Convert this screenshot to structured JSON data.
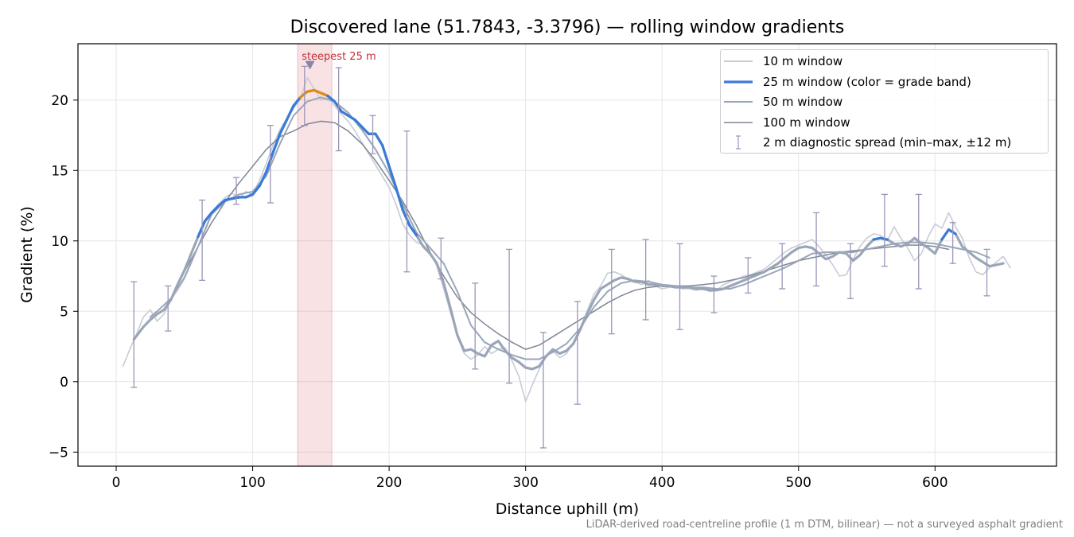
{
  "chart_data": {
    "type": "line",
    "title": "Discovered lane (51.7843, -3.3796) — rolling window gradients",
    "xlabel": "Distance uphill (m)",
    "ylabel": "Gradient (%)",
    "xlim": [
      -28,
      689
    ],
    "ylim": [
      -6,
      24
    ],
    "xticks": [
      0,
      100,
      200,
      300,
      400,
      500,
      600
    ],
    "yticks": [
      -5,
      0,
      5,
      10,
      15,
      20
    ],
    "grid": true,
    "legend_position": "top-right",
    "footnote": "LiDAR-derived road-centreline profile (1 m DTM, bilinear) — not a surveyed asphalt gradient",
    "highlight": {
      "x_start": 133,
      "x_end": 158,
      "label": "steepest 25 m",
      "marker_x": 142,
      "marker_y": 22.5
    },
    "series": [
      {
        "name": "10 m window",
        "color": "#c8ccd6",
        "x": [
          5,
          10,
          15,
          20,
          25,
          30,
          35,
          40,
          45,
          50,
          55,
          60,
          65,
          70,
          75,
          80,
          85,
          90,
          95,
          100,
          105,
          110,
          115,
          120,
          125,
          130,
          135,
          140,
          145,
          150,
          155,
          160,
          165,
          170,
          175,
          180,
          185,
          190,
          195,
          200,
          205,
          210,
          215,
          220,
          225,
          230,
          235,
          240,
          245,
          250,
          255,
          260,
          265,
          270,
          275,
          280,
          285,
          290,
          295,
          300,
          305,
          310,
          315,
          320,
          325,
          330,
          335,
          340,
          345,
          350,
          355,
          360,
          365,
          370,
          375,
          380,
          385,
          390,
          395,
          400,
          405,
          410,
          415,
          420,
          425,
          430,
          435,
          440,
          445,
          450,
          455,
          460,
          465,
          470,
          475,
          480,
          485,
          490,
          495,
          500,
          505,
          510,
          515,
          520,
          525,
          530,
          535,
          540,
          545,
          550,
          555,
          560,
          565,
          570,
          575,
          580,
          585,
          590,
          595,
          600,
          605,
          610,
          615,
          620,
          625,
          630,
          635,
          640,
          645,
          650,
          655
        ],
        "y": [
          1.1,
          2.3,
          3.4,
          4.6,
          5.1,
          4.3,
          4.8,
          5.8,
          6.5,
          7.3,
          8.4,
          9.6,
          10.8,
          12.0,
          12.6,
          13.1,
          13.4,
          13.0,
          13.5,
          13.3,
          14.3,
          15.5,
          16.8,
          17.9,
          18.7,
          19.4,
          20.1,
          21.6,
          20.8,
          20.0,
          20.2,
          19.6,
          19.0,
          18.5,
          17.8,
          17.0,
          16.2,
          15.4,
          14.6,
          13.8,
          12.6,
          11.2,
          10.4,
          9.9,
          9.7,
          9.2,
          8.2,
          6.6,
          4.9,
          3.2,
          2.0,
          1.6,
          1.9,
          2.5,
          2.0,
          2.3,
          2.4,
          1.5,
          0.4,
          -1.4,
          -0.2,
          0.9,
          1.8,
          2.2,
          1.7,
          2.0,
          2.8,
          3.8,
          5.0,
          6.2,
          6.8,
          7.7,
          7.8,
          7.6,
          7.3,
          7.1,
          6.9,
          7.2,
          6.8,
          6.6,
          6.7,
          6.8,
          6.6,
          6.6,
          6.5,
          6.6,
          6.4,
          6.5,
          6.9,
          7.1,
          7.3,
          7.5,
          7.6,
          7.8,
          8.0,
          8.4,
          8.8,
          9.2,
          9.5,
          9.7,
          9.9,
          10.1,
          9.6,
          9.0,
          8.3,
          7.5,
          7.6,
          8.7,
          9.6,
          10.2,
          10.5,
          10.4,
          10.0,
          11.0,
          10.2,
          9.5,
          8.6,
          9.1,
          10.3,
          11.2,
          10.9,
          12.0,
          11.0,
          10.2,
          8.8,
          7.8,
          7.6,
          8.1,
          8.5,
          8.9,
          8.1
        ]
      },
      {
        "name": "25 m window (color = grade band)",
        "color": "#3b7bd8",
        "x": [
          13,
          20,
          25,
          30,
          35,
          40,
          45,
          50,
          55,
          60,
          65,
          70,
          75,
          80,
          85,
          90,
          95,
          100,
          105,
          110,
          115,
          120,
          125,
          130,
          135,
          140,
          145,
          150,
          155,
          160,
          165,
          170,
          175,
          180,
          185,
          190,
          195,
          200,
          205,
          210,
          215,
          220,
          225,
          230,
          235,
          240,
          245,
          250,
          255,
          260,
          265,
          270,
          275,
          280,
          285,
          290,
          295,
          300,
          305,
          310,
          315,
          320,
          325,
          330,
          335,
          340,
          345,
          350,
          355,
          360,
          365,
          370,
          375,
          380,
          385,
          390,
          395,
          400,
          405,
          410,
          415,
          420,
          425,
          430,
          435,
          440,
          445,
          450,
          455,
          460,
          465,
          470,
          475,
          480,
          485,
          490,
          495,
          500,
          505,
          510,
          515,
          520,
          525,
          530,
          535,
          540,
          545,
          550,
          555,
          560,
          565,
          570,
          575,
          580,
          585,
          590,
          595,
          600,
          605,
          610,
          615,
          620,
          625,
          630,
          635,
          640,
          645,
          650
        ],
        "y": [
          3.0,
          3.9,
          4.4,
          4.8,
          5.1,
          5.8,
          6.9,
          7.9,
          9.1,
          10.3,
          11.4,
          12.0,
          12.5,
          12.9,
          13.0,
          13.1,
          13.1,
          13.3,
          13.9,
          14.9,
          16.3,
          17.6,
          18.6,
          19.6,
          20.2,
          20.6,
          20.7,
          20.5,
          20.3,
          19.9,
          19.2,
          18.9,
          18.6,
          18.1,
          17.6,
          17.6,
          16.8,
          15.3,
          13.8,
          12.2,
          11.1,
          10.4,
          9.6,
          9.1,
          8.4,
          7.0,
          5.2,
          3.3,
          2.2,
          2.3,
          2.0,
          1.8,
          2.6,
          2.9,
          2.2,
          1.7,
          1.4,
          1.0,
          0.9,
          1.1,
          1.8,
          2.3,
          2.0,
          2.2,
          2.7,
          3.7,
          4.8,
          5.8,
          6.6,
          6.9,
          7.2,
          7.4,
          7.3,
          7.1,
          7.1,
          6.9,
          6.9,
          6.8,
          6.8,
          6.7,
          6.7,
          6.7,
          6.6,
          6.6,
          6.5,
          6.5,
          6.6,
          6.8,
          7.0,
          7.2,
          7.4,
          7.6,
          7.8,
          8.1,
          8.4,
          8.8,
          9.2,
          9.5,
          9.6,
          9.5,
          9.1,
          8.7,
          8.9,
          9.2,
          9.1,
          8.6,
          9.0,
          9.6,
          10.1,
          10.2,
          10.1,
          9.8,
          9.6,
          9.8,
          10.2,
          9.8,
          9.5,
          9.1,
          10.1,
          10.8,
          10.5,
          9.6,
          9.2,
          8.8,
          8.5,
          8.2,
          8.3,
          8.4
        ]
      },
      {
        "name": "50 m window",
        "color": "#9aa6b8",
        "x": [
          25,
          30,
          40,
          50,
          60,
          70,
          80,
          90,
          100,
          110,
          120,
          130,
          140,
          150,
          160,
          170,
          180,
          190,
          200,
          210,
          220,
          230,
          240,
          250,
          260,
          270,
          280,
          290,
          300,
          310,
          320,
          330,
          340,
          350,
          360,
          370,
          380,
          390,
          400,
          410,
          420,
          430,
          440,
          450,
          460,
          470,
          480,
          490,
          500,
          510,
          520,
          530,
          540,
          550,
          560,
          570,
          580,
          590,
          600,
          610,
          620,
          630,
          640
        ],
        "y": [
          4.6,
          5.0,
          5.9,
          7.4,
          9.6,
          11.9,
          12.8,
          13.3,
          13.5,
          14.6,
          16.9,
          18.9,
          19.9,
          20.2,
          19.9,
          19.1,
          17.9,
          16.5,
          14.8,
          12.6,
          10.6,
          9.5,
          8.4,
          6.4,
          4.0,
          2.8,
          2.3,
          1.9,
          1.6,
          1.6,
          2.1,
          2.7,
          3.8,
          5.3,
          6.4,
          7.0,
          7.2,
          7.1,
          6.9,
          6.8,
          6.7,
          6.7,
          6.6,
          6.6,
          6.9,
          7.3,
          7.7,
          8.1,
          8.6,
          9.1,
          9.2,
          9.2,
          9.2,
          9.4,
          9.6,
          9.8,
          9.9,
          9.9,
          9.8,
          9.6,
          9.4,
          9.2,
          8.8
        ]
      },
      {
        "name": "100 m window",
        "color": "#7e8696",
        "x": [
          50,
          60,
          70,
          80,
          90,
          100,
          110,
          120,
          130,
          140,
          150,
          160,
          170,
          180,
          190,
          200,
          210,
          220,
          230,
          240,
          250,
          260,
          270,
          280,
          290,
          300,
          310,
          320,
          330,
          340,
          350,
          360,
          370,
          380,
          390,
          400,
          410,
          420,
          430,
          440,
          450,
          460,
          470,
          480,
          490,
          500,
          510,
          520,
          530,
          540,
          550,
          560,
          570,
          580,
          590,
          600,
          610
        ],
        "y": [
          7.8,
          9.6,
          11.3,
          12.8,
          14.1,
          15.3,
          16.5,
          17.4,
          17.8,
          18.3,
          18.5,
          18.4,
          17.8,
          16.9,
          15.7,
          14.3,
          12.8,
          11.1,
          9.2,
          7.5,
          6.0,
          4.9,
          4.1,
          3.4,
          2.8,
          2.3,
          2.6,
          3.2,
          3.8,
          4.4,
          5.0,
          5.6,
          6.1,
          6.5,
          6.7,
          6.8,
          6.8,
          6.8,
          6.9,
          7.0,
          7.2,
          7.4,
          7.7,
          8.0,
          8.3,
          8.6,
          8.8,
          9.0,
          9.2,
          9.3,
          9.4,
          9.5,
          9.6,
          9.7,
          9.7,
          9.6,
          9.4
        ]
      },
      {
        "name": "2 m diagnostic spread (min–max, ±12 m)",
        "color": "#9a96b8",
        "type": "errorbar",
        "x": [
          13,
          38,
          63,
          88,
          113,
          138,
          163,
          188,
          213,
          238,
          263,
          288,
          313,
          338,
          363,
          388,
          413,
          438,
          463,
          488,
          513,
          538,
          563,
          588,
          613,
          638
        ],
        "y_min": [
          -0.4,
          3.6,
          7.2,
          12.6,
          12.7,
          18.2,
          16.4,
          16.2,
          7.8,
          7.3,
          0.9,
          -0.1,
          -4.7,
          -1.6,
          3.4,
          4.4,
          3.7,
          4.9,
          6.3,
          6.6,
          6.8,
          5.9,
          8.2,
          6.6,
          8.4,
          6.1
        ],
        "y_max": [
          7.1,
          6.8,
          12.9,
          14.5,
          18.2,
          22.4,
          22.3,
          18.9,
          17.8,
          10.2,
          7.0,
          9.4,
          3.5,
          5.7,
          9.4,
          10.1,
          9.8,
          7.5,
          8.8,
          9.8,
          12.0,
          9.8,
          13.3,
          13.3,
          11.3,
          9.4
        ]
      }
    ]
  }
}
